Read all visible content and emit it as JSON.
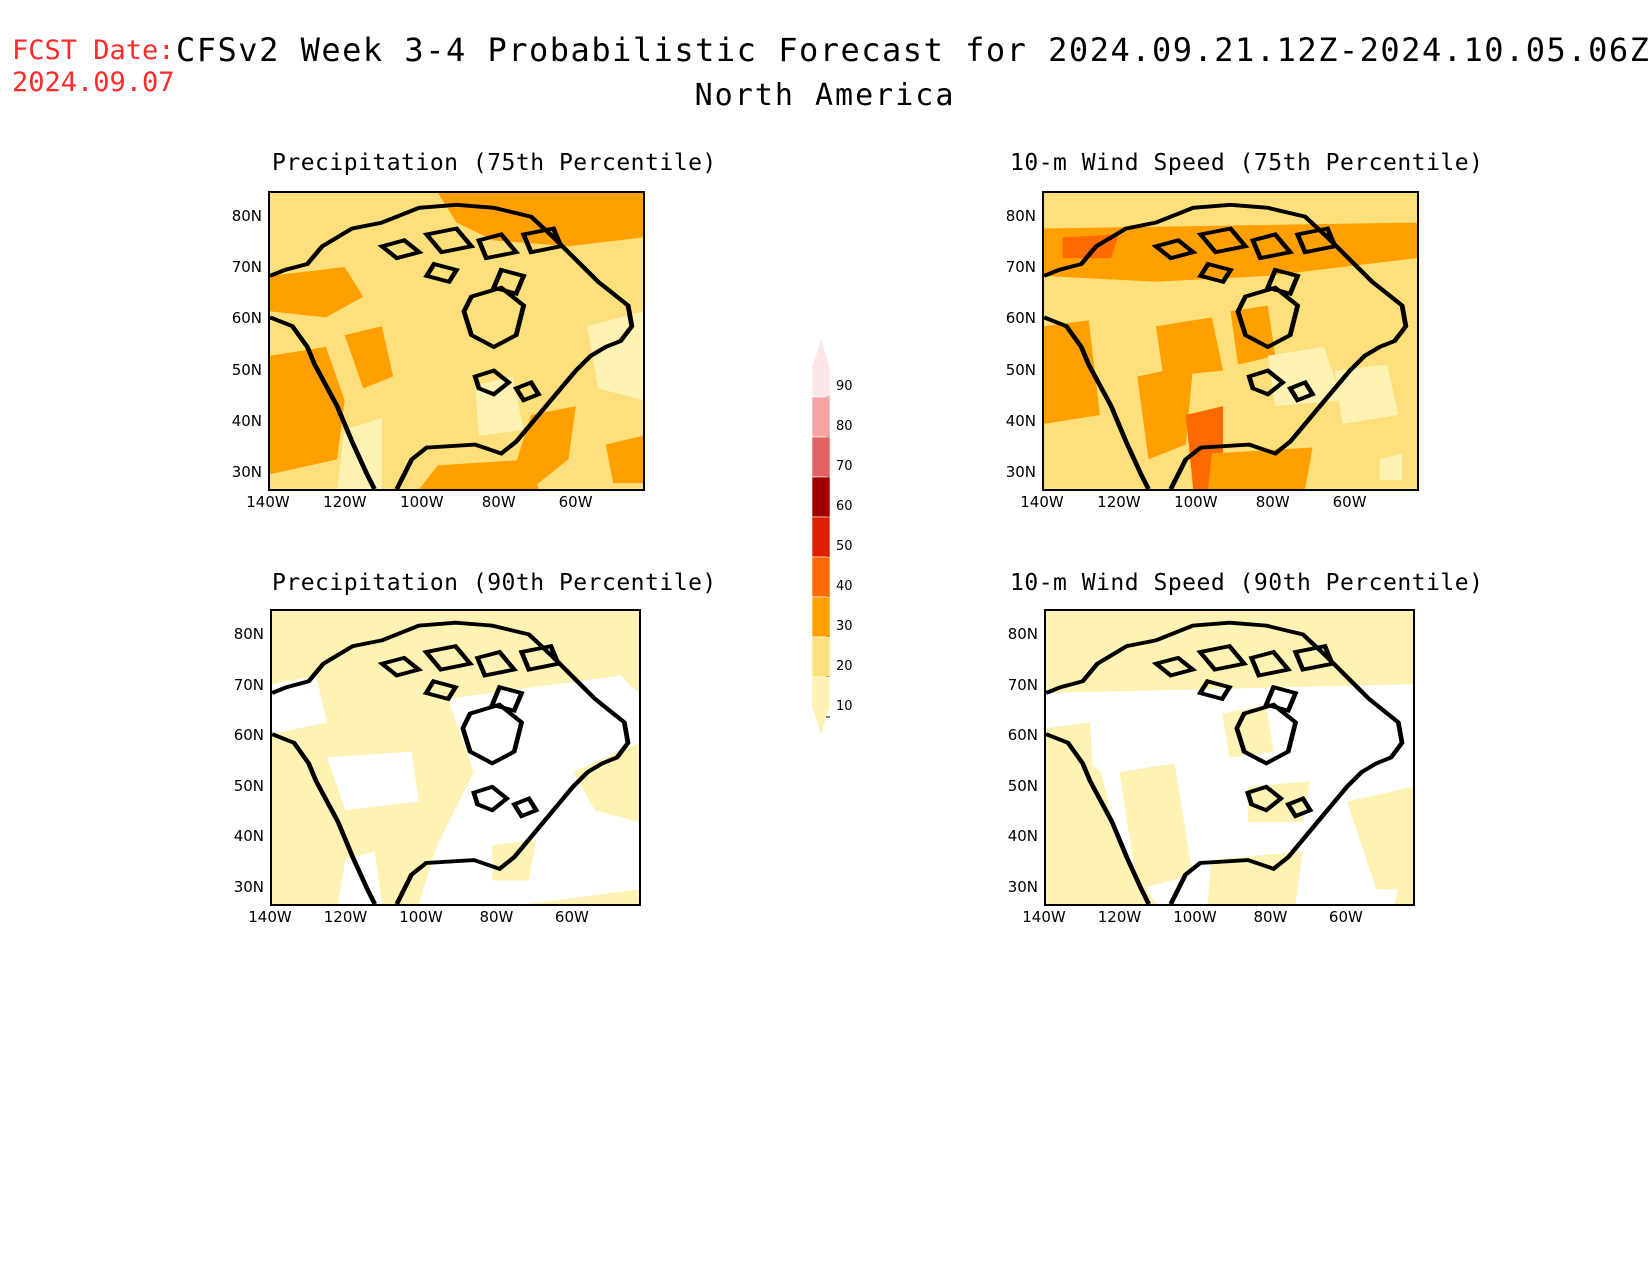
{
  "header": {
    "fcst_label": "FCST Date:",
    "fcst_date": "2024.09.07",
    "title": "CFSv2 Week 3-4 Probabilistic Forecast for 2024.09.21.12Z-2024.10.05.06Z",
    "subtitle": "North America"
  },
  "panels": [
    {
      "title": "Precipitation (75th Percentile)",
      "base_color": "#fde07c"
    },
    {
      "title": "10-m Wind Speed (75th Percentile)",
      "base_color": "#fde07c"
    },
    {
      "title": "Precipitation (90th Percentile)",
      "base_color": "#fef3b5"
    },
    {
      "title": "10-m Wind Speed (90th Percentile)",
      "base_color": "#fef3b5"
    }
  ],
  "axes": {
    "lat_labels": [
      "80N",
      "70N",
      "60N",
      "50N",
      "40N",
      "30N"
    ],
    "lon_labels": [
      "140W",
      "120W",
      "100W",
      "80W",
      "60W"
    ]
  },
  "colorbar": {
    "levels": [
      "90",
      "80",
      "70",
      "60",
      "50",
      "40",
      "30",
      "20",
      "10"
    ],
    "colors": [
      "#fde6e6",
      "#f4a4a4",
      "#e06464",
      "#a00000",
      "#e01e00",
      "#ff6a00",
      "#ffa000",
      "#fde07c",
      "#fef3b5"
    ]
  },
  "icons": {
    "coastline": "continent-outline-icon"
  }
}
